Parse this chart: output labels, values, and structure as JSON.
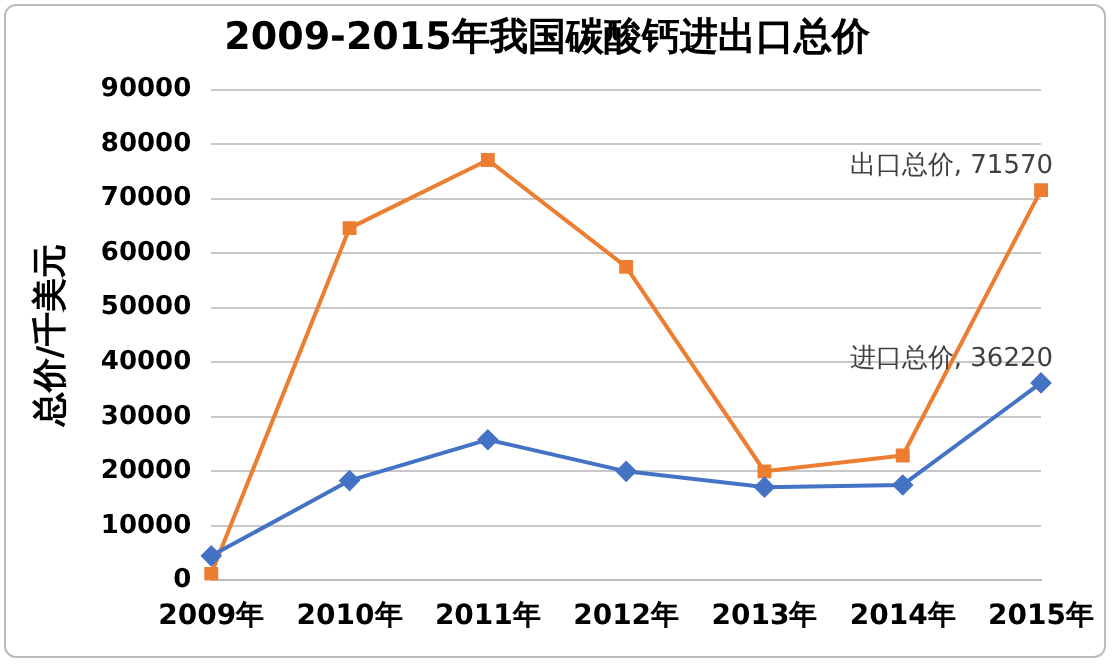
{
  "chart_data": {
    "type": "line",
    "title": "2009-2015年我国碳酸钙进出口总价",
    "ylabel": "总价/千美元",
    "categories": [
      "2009年",
      "2010年",
      "2011年",
      "2012年",
      "2013年",
      "2014年",
      "2015年"
    ],
    "series": [
      {
        "color": "#4472c4",
        "marker": "diamond",
        "values": [
          4500,
          18300,
          25800,
          20000,
          17100,
          17500,
          36220
        ],
        "value_labels": [
          null,
          null,
          null,
          null,
          null,
          null,
          "进口总价, 36220"
        ]
      },
      {
        "color": "#ed7d31",
        "marker": "square",
        "values": [
          1200,
          64600,
          77100,
          57500,
          20000,
          22900,
          71570
        ],
        "value_labels": [
          null,
          null,
          null,
          null,
          null,
          null,
          "出口总价, 71570"
        ]
      }
    ],
    "ylim": [
      0,
      90000
    ],
    "yticks": [
      0,
      10000,
      20000,
      30000,
      40000,
      50000,
      60000,
      70000,
      80000,
      90000
    ],
    "grid": "y",
    "legend": false
  }
}
